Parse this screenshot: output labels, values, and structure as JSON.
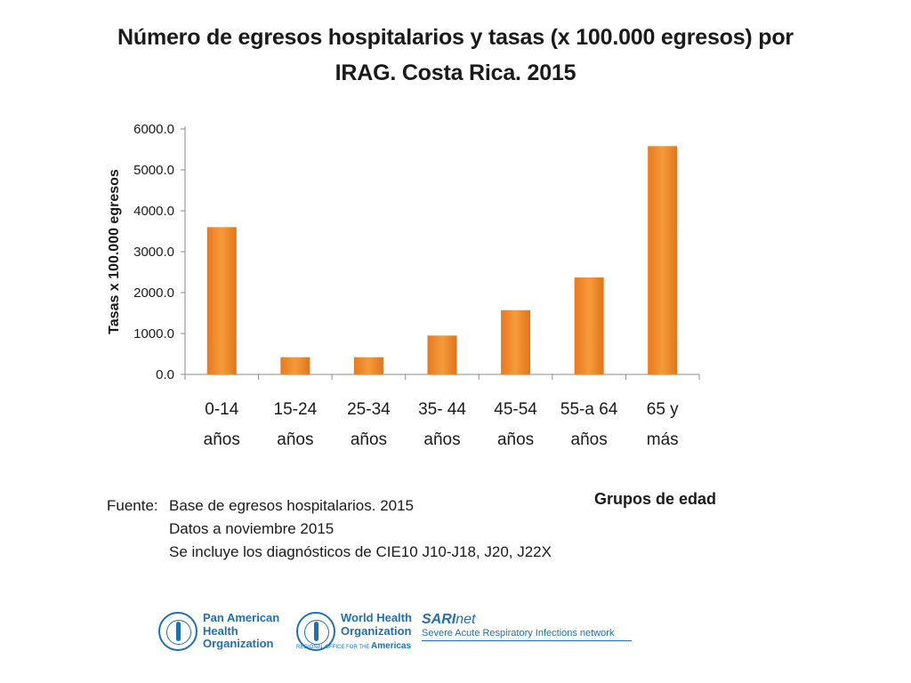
{
  "title_line1": "Número de egresos hospitalarios y tasas (x 100.000 egresos) por",
  "title_line2": "IRAG. Costa Rica. 2015",
  "chart_data": {
    "type": "bar",
    "title": "Número de egresos hospitalarios y tasas (x 100.000 egresos) por IRAG. Costa Rica. 2015",
    "ylabel": "Tasas x 100.000 egresos",
    "xlabel": "Grupos de edad",
    "ylim": [
      0,
      6000
    ],
    "yticks": [
      "0.0",
      "1000.0",
      "2000.0",
      "3000.0",
      "4000.0",
      "5000.0",
      "6000.0"
    ],
    "categories": [
      [
        "0-14",
        "años"
      ],
      [
        "15-24",
        "años"
      ],
      [
        "25-34",
        "años"
      ],
      [
        "35- 44",
        "años"
      ],
      [
        "45-54",
        "años"
      ],
      [
        "55-a 64",
        "años"
      ],
      [
        "65 y",
        "más"
      ]
    ],
    "values": [
      3600,
      420,
      420,
      950,
      1570,
      2370,
      5580
    ],
    "bar_color": "#f08c2a",
    "bar_color_dark": "#e0751a",
    "grid": false,
    "legend": "none"
  },
  "source": {
    "label": "Fuente:",
    "line1": "Base de egresos hospitalarios.  2015",
    "line2": "Datos  a noviembre 2015",
    "line3": "Se incluye los diagnósticos de CIE10 J10-J18, J20, J22X"
  },
  "x_axis_title": "Grupos de edad",
  "logos": {
    "paho": [
      "Pan American",
      "Health",
      "Organization"
    ],
    "who": [
      "World Health",
      "Organization"
    ],
    "who_sub_small": "REGIONAL OFFICE FOR THE",
    "who_sub_big": "Americas",
    "sari_bold": "SARI",
    "sari_italic": "net",
    "sari_sub": "Severe Acute Respiratory Infections network"
  }
}
